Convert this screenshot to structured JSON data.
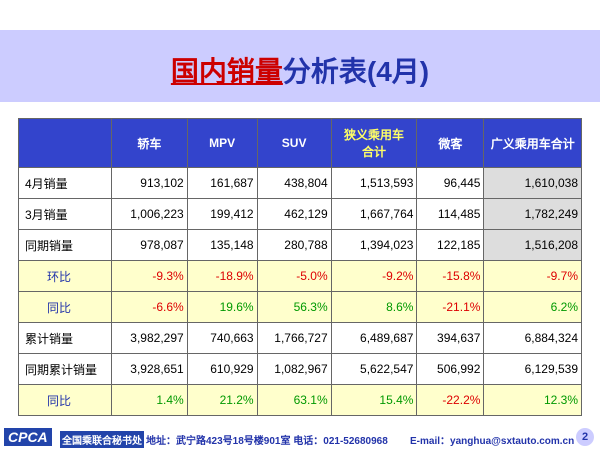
{
  "header": {
    "title_highlight": "国内销量",
    "title_rest": "分析表(4月)"
  },
  "table": {
    "columns": [
      "",
      "轿车",
      "MPV",
      "SUV",
      "狭义乘用车合计",
      "微客",
      "广义乘用车合计"
    ],
    "rows": [
      [
        "4月销量",
        "913,102",
        "161,687",
        "438,804",
        "1,513,593",
        "96,445",
        "1,610,038"
      ],
      [
        "3月销量",
        "1,006,223",
        "199,412",
        "462,129",
        "1,667,764",
        "114,485",
        "1,782,249"
      ],
      [
        "同期销量",
        "978,087",
        "135,148",
        "280,788",
        "1,394,023",
        "122,185",
        "1,516,208"
      ],
      [
        "环比",
        "-9.3%",
        "-18.9%",
        "-5.0%",
        "-9.2%",
        "-15.8%",
        "-9.7%"
      ],
      [
        "同比",
        "-6.6%",
        "19.6%",
        "56.3%",
        "8.6%",
        "-21.1%",
        "6.2%"
      ],
      [
        "累计销量",
        "3,982,297",
        "740,663",
        "1,766,727",
        "6,489,687",
        "394,637",
        "6,884,324"
      ],
      [
        "同期累计销量",
        "3,928,651",
        "610,929",
        "1,082,967",
        "5,622,547",
        "506,992",
        "6,129,539"
      ],
      [
        "同比",
        "1.4%",
        "21.2%",
        "63.1%",
        "15.4%",
        "-22.2%",
        "12.3%"
      ]
    ]
  },
  "footer": {
    "logo": "CPCA",
    "org": "全国乘联合秘书处",
    "address": "地址：武宁路423号18号楼901室 电话：021-52680968",
    "email": "E-mail：yanghua@sxtauto.com.cn",
    "page": "2"
  }
}
